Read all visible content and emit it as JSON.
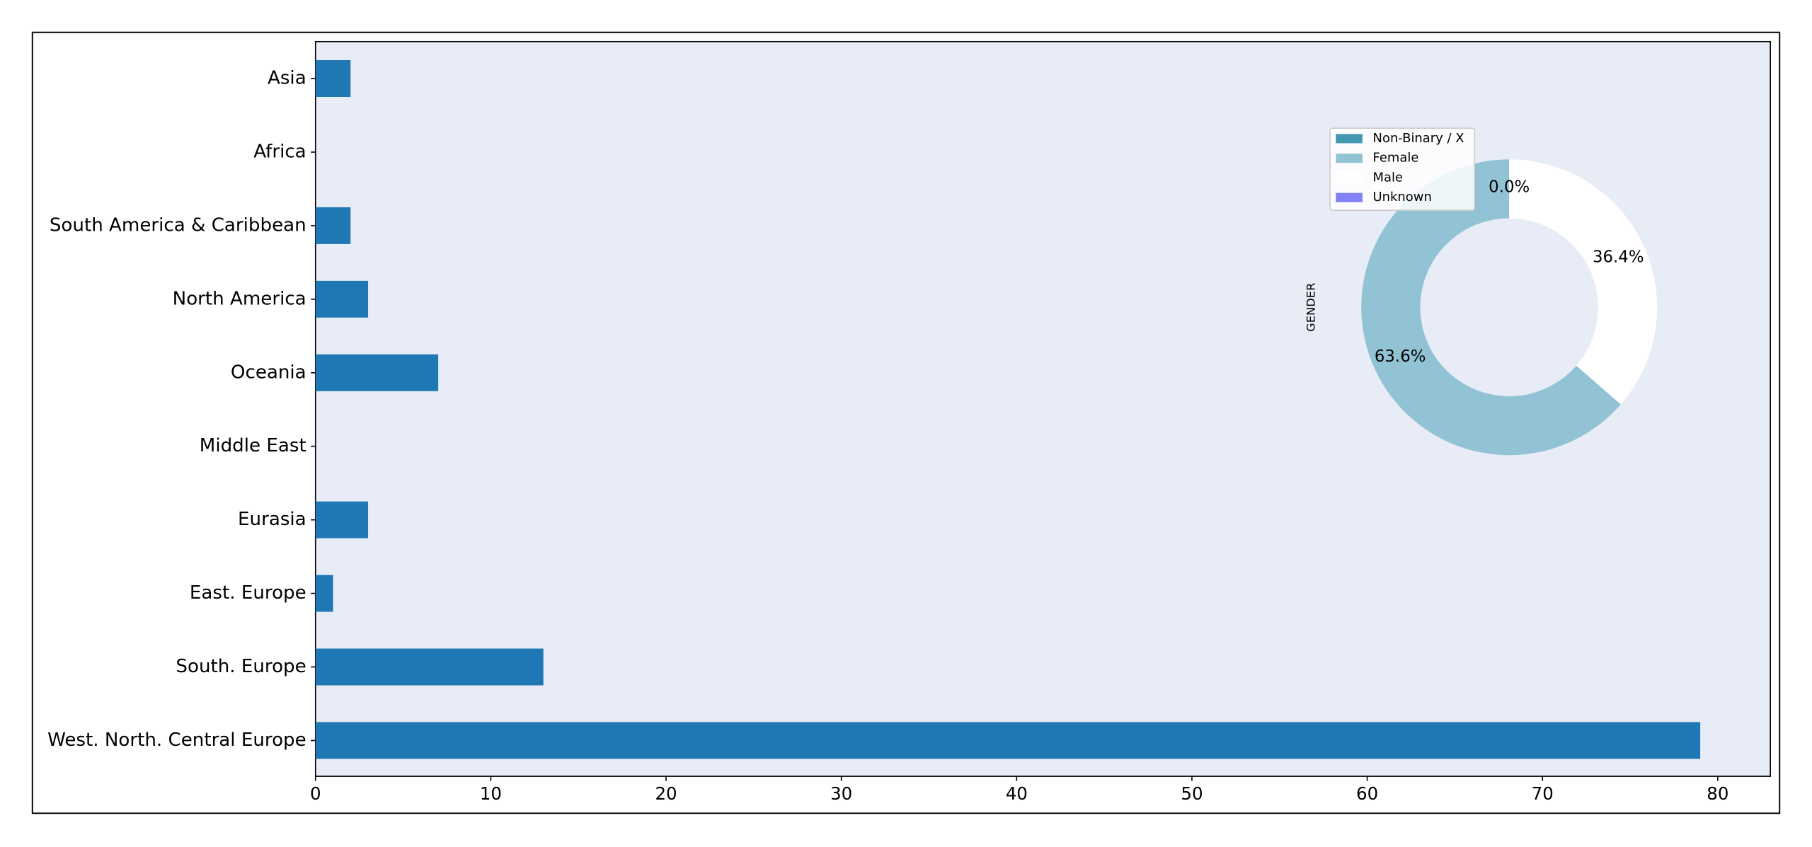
{
  "chart_data": [
    {
      "type": "barh",
      "categories": [
        "Asia",
        "Africa",
        "South America & Caribbean",
        "North America",
        "Oceania",
        "Middle East",
        "Eurasia",
        "East. Europe",
        "South. Europe",
        "West. North. Central Europe"
      ],
      "values": [
        2,
        0,
        2,
        3,
        7,
        0,
        3,
        1,
        13,
        79
      ],
      "color": "#1f77b4",
      "xlim": [
        0,
        83
      ],
      "xticks": [
        0,
        10,
        20,
        30,
        40,
        50,
        60,
        70,
        80
      ]
    },
    {
      "type": "pie",
      "ylabel": "GENDER",
      "categories": [
        "Non-Binary / X",
        "Female",
        "Male",
        "Unknown"
      ],
      "values": [
        0,
        63.6,
        36.4,
        0
      ],
      "value_labels": [
        "0.0%",
        "63.6%",
        "36.4%",
        "0.0%"
      ],
      "colors": [
        "#4497b0",
        "#92c3d4",
        "#ffffff",
        "#8080f8"
      ]
    }
  ]
}
